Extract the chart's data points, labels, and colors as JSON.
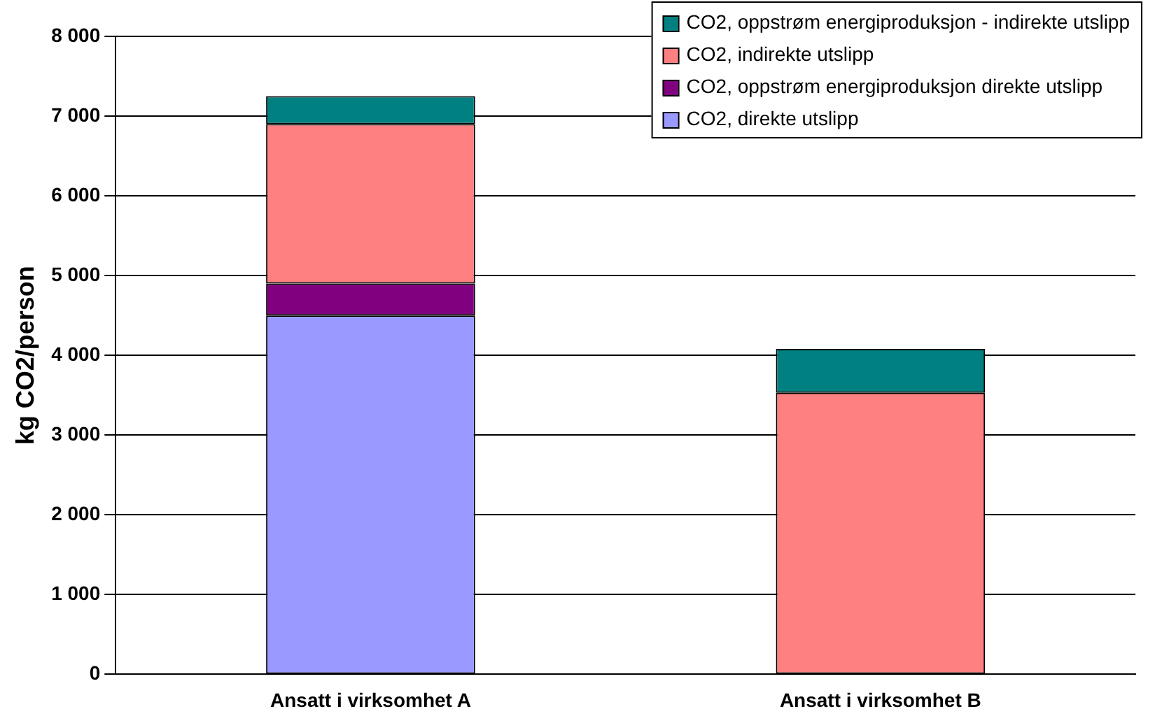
{
  "chart_data": {
    "type": "bar",
    "stacked": true,
    "ylabel": "kg CO2/person",
    "categories": [
      "Ansatt i virksomhet A",
      "Ansatt i virksomhet B"
    ],
    "series": [
      {
        "name": "CO2, direkte utslipp",
        "color": "#9999ff",
        "values": [
          4500,
          null
        ]
      },
      {
        "name": "CO2, oppstrøm energiproduksjon direkte utslipp",
        "color": "#800080",
        "values": [
          400,
          null
        ]
      },
      {
        "name": "CO2, indirekte utslipp",
        "color": "#ff8080",
        "values": [
          2000,
          3530
        ]
      },
      {
        "name": "CO2, oppstrøm energiproduksjon - indirekte utslipp",
        "color": "#008080",
        "values": [
          350,
          550
        ]
      }
    ],
    "ylim": [
      0,
      8000
    ],
    "yticks": [
      {
        "value": 0,
        "label": "0"
      },
      {
        "value": 1000,
        "label": "1 000"
      },
      {
        "value": 2000,
        "label": "2 000"
      },
      {
        "value": 3000,
        "label": "3 000"
      },
      {
        "value": 4000,
        "label": "4 000"
      },
      {
        "value": 5000,
        "label": "5 000"
      },
      {
        "value": 6000,
        "label": "6 000"
      },
      {
        "value": 7000,
        "label": "7 000"
      },
      {
        "value": 8000,
        "label": "8 000"
      }
    ],
    "grid": "y",
    "legend": "top right"
  }
}
